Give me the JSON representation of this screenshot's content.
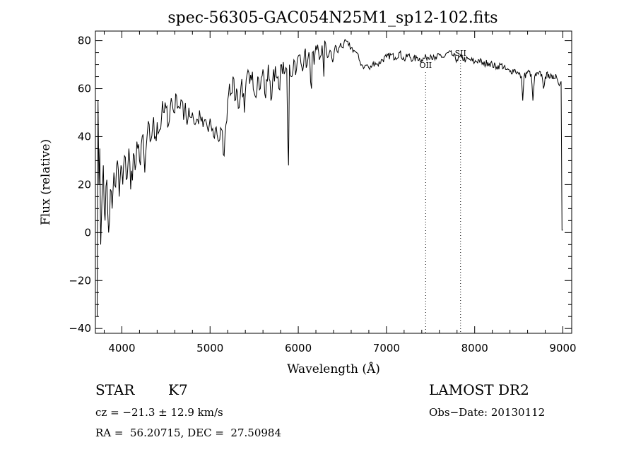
{
  "chart_data": {
    "type": "line",
    "title": "spec-56305-GAC054N25M1_sp12-102.fits",
    "xlabel": "Wavelength (Å)",
    "ylabel": "Flux (relative)",
    "xlim": [
      3700,
      9100
    ],
    "ylim": [
      -42,
      84
    ],
    "x_ticks": [
      4000,
      5000,
      6000,
      7000,
      8000,
      9000
    ],
    "y_ticks": [
      -40,
      -20,
      0,
      20,
      40,
      60,
      80
    ],
    "grid": false,
    "line_color": "#000000",
    "series": [
      {
        "x": [
          3720,
          3730,
          3740,
          3750,
          3760,
          3775,
          3790,
          3810,
          3830,
          3850,
          3870,
          3890,
          3910,
          3930,
          3950,
          3970,
          3990,
          4010,
          4030,
          4050,
          4080,
          4100,
          4130,
          4150,
          4180,
          4200,
          4230,
          4260,
          4290,
          4320,
          4350,
          4380,
          4400,
          4420,
          4450,
          4480,
          4500,
          4530,
          4560,
          4590,
          4620,
          4650,
          4680,
          4700,
          4720,
          4740,
          4760,
          4780,
          4800,
          4830,
          4860,
          4890,
          4920,
          4950,
          4980,
          5010,
          5040,
          5070,
          5100,
          5130,
          5160,
          5180,
          5200,
          5220,
          5240,
          5260,
          5280,
          5300,
          5330,
          5360,
          5390,
          5420,
          5450,
          5480,
          5510,
          5540,
          5570,
          5600,
          5630,
          5660,
          5690,
          5720,
          5750,
          5780,
          5810,
          5840,
          5870,
          5880,
          5890,
          5900,
          5920,
          5950,
          5980,
          6010,
          6040,
          6070,
          6100,
          6130,
          6150,
          6160,
          6180,
          6210,
          6240,
          6270,
          6290,
          6300,
          6330,
          6360,
          6390,
          6420,
          6450,
          6480,
          6510,
          6540,
          6570,
          6600,
          6630,
          6660,
          6690,
          6720,
          6750,
          6780,
          6810,
          6840,
          6870,
          6900,
          6950,
          7000,
          7050,
          7100,
          7150,
          7200,
          7250,
          7300,
          7350,
          7400,
          7450,
          7500,
          7550,
          7600,
          7650,
          7700,
          7750,
          7800,
          7850,
          7900,
          7950,
          8000,
          8050,
          8100,
          8150,
          8200,
          8250,
          8300,
          8350,
          8400,
          8450,
          8500,
          8530,
          8545,
          8560,
          8600,
          8640,
          8660,
          8680,
          8720,
          8760,
          8780,
          8800,
          8840,
          8880,
          8920,
          8950,
          8980,
          8990,
          9000
        ],
        "y": [
          -35,
          55,
          20,
          35,
          -5,
          15,
          28,
          5,
          22,
          0,
          18,
          10,
          25,
          19,
          30,
          15,
          28,
          20,
          32,
          22,
          35,
          18,
          33,
          26,
          35,
          30,
          40,
          25,
          42,
          38,
          45,
          40,
          46,
          42,
          48,
          50,
          52,
          45,
          56,
          50,
          57,
          52,
          55,
          47,
          54,
          45,
          52,
          48,
          50,
          45,
          47,
          48,
          44,
          47,
          42,
          45,
          40,
          44,
          38,
          43,
          32,
          45,
          55,
          62,
          58,
          65,
          55,
          60,
          52,
          64,
          50,
          66,
          62,
          67,
          57,
          65,
          60,
          68,
          56,
          70,
          55,
          68,
          65,
          60,
          70,
          66,
          68,
          40,
          28,
          70,
          65,
          72,
          68,
          74,
          69,
          75,
          70,
          73,
          60,
          75,
          70,
          76,
          72,
          78,
          65,
          80,
          73,
          76,
          71,
          78,
          75,
          79,
          77,
          80,
          78,
          77,
          76,
          75,
          72,
          70,
          69,
          70,
          68,
          70,
          71,
          70,
          72,
          73,
          74,
          73,
          75,
          72,
          74,
          72,
          73,
          72,
          73,
          74,
          72,
          74,
          73,
          75,
          74,
          72,
          73,
          72,
          72,
          71,
          72,
          70,
          71,
          70,
          69,
          70,
          68,
          67,
          68,
          66,
          65,
          55,
          65,
          67,
          66,
          55,
          65,
          66,
          66,
          60,
          65,
          66,
          64,
          66,
          62,
          63,
          1,
          1
        ]
      }
    ],
    "annotations": [
      {
        "text": "OII",
        "x": 7444
      },
      {
        "text": "SII",
        "x": 7840
      }
    ],
    "footer": {
      "object_type": "STAR",
      "subclass": "K7",
      "survey": "LAMOST DR2",
      "cz": "cz = −21.3 ± 12.9 km/s",
      "obs_date": "Obs−Date: 20130112",
      "radec": "RA =  56.20715, DEC =  27.50984"
    }
  }
}
